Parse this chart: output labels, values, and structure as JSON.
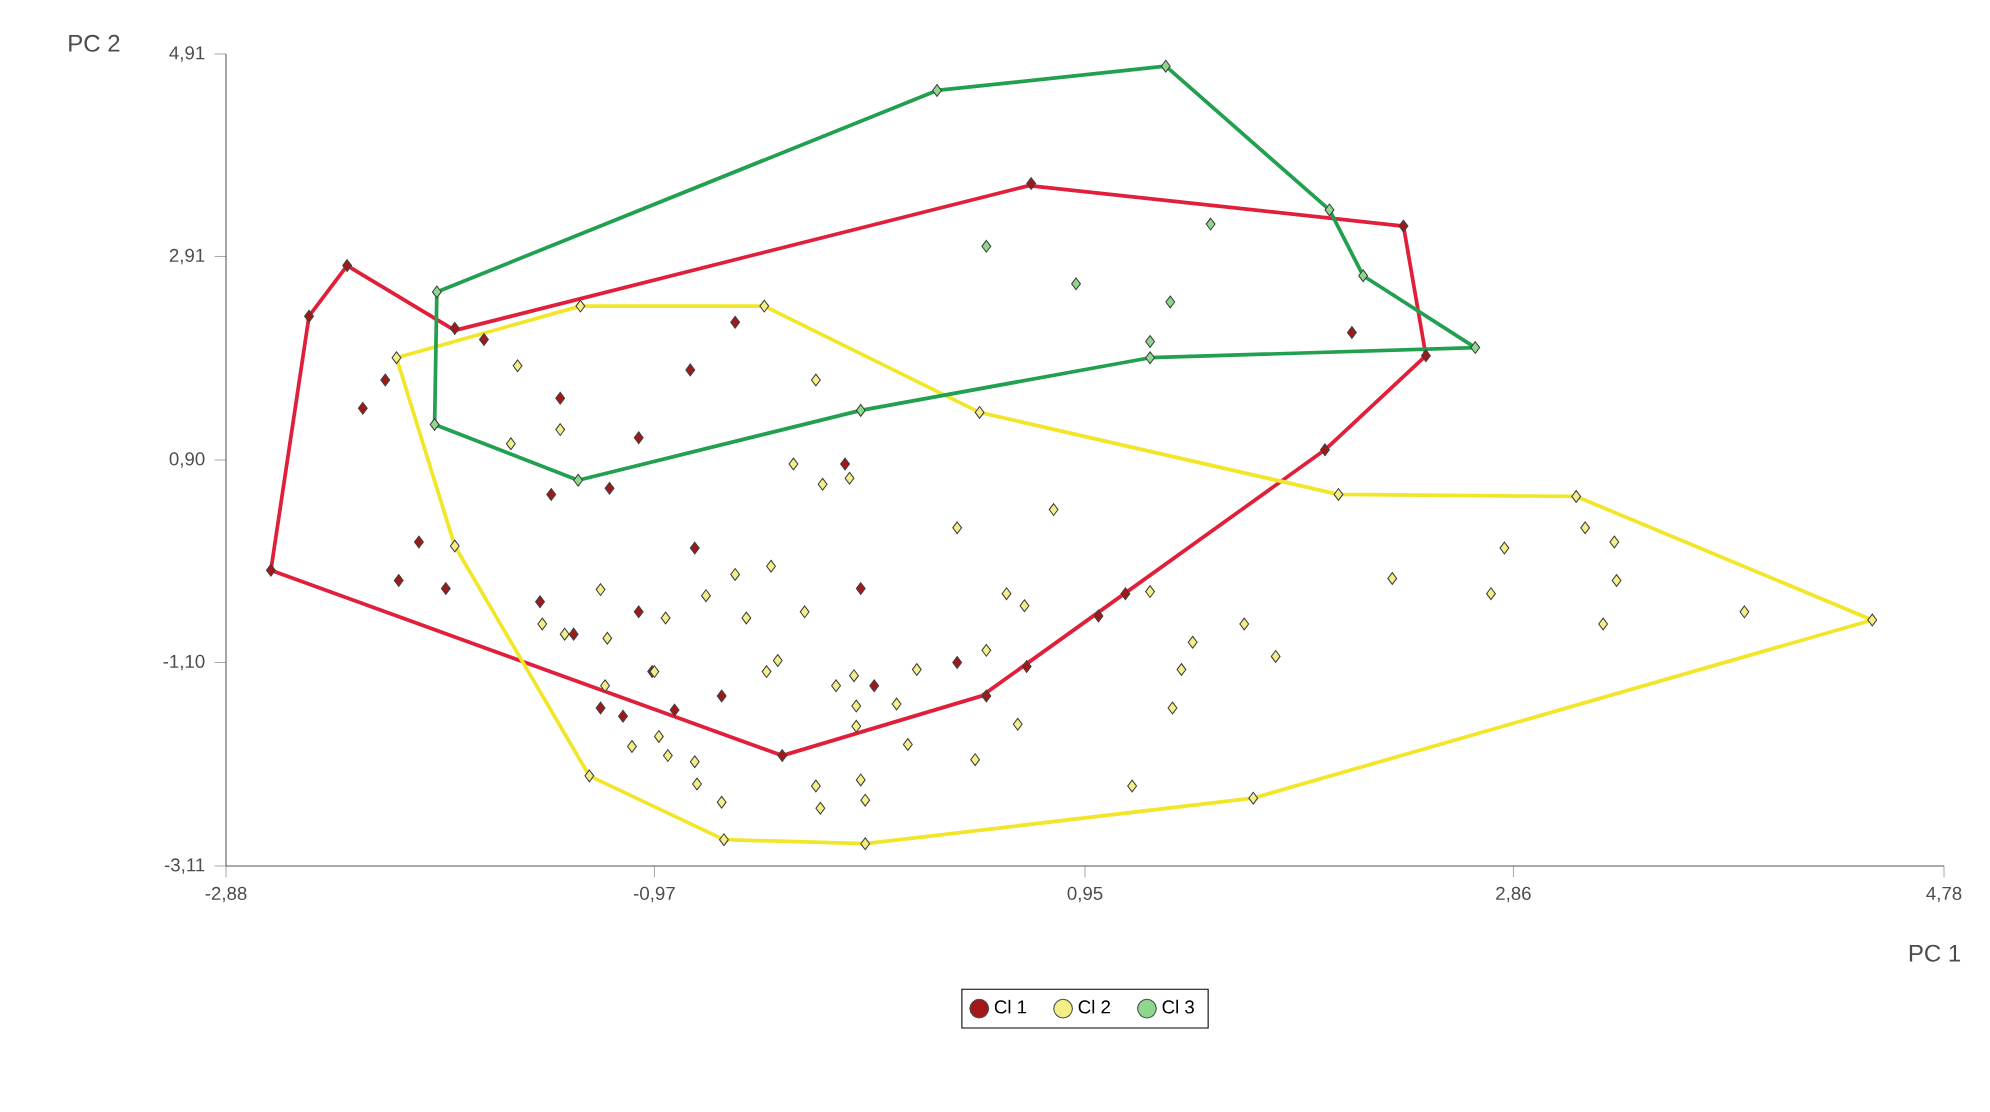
{
  "chart_data": {
    "type": "scatter",
    "xlabel": "PC 1",
    "ylabel": "PC 2",
    "xlim": [
      -2.88,
      4.78
    ],
    "ylim": [
      -3.11,
      4.91
    ],
    "xticks": [
      {
        "value": -2.88,
        "label": "-2,88"
      },
      {
        "value": -0.97,
        "label": "-0,97"
      },
      {
        "value": 0.95,
        "label": "0,95"
      },
      {
        "value": 2.86,
        "label": "2,86"
      },
      {
        "value": 4.78,
        "label": "4,78"
      }
    ],
    "yticks": [
      {
        "value": -3.11,
        "label": "-3,11"
      },
      {
        "value": -1.1,
        "label": "-1,10"
      },
      {
        "value": 0.9,
        "label": "0,90"
      },
      {
        "value": 2.91,
        "label": "2,91"
      },
      {
        "value": 4.91,
        "label": "4,91"
      }
    ],
    "marker": "diamond",
    "legend": "bottom",
    "grid": false,
    "series": [
      {
        "type": "line",
        "marker": "none",
        "color": "#e0203a",
        "x": [
          -2.68,
          -2.51,
          -2.34,
          -1.86,
          0.7,
          2.37,
          2.47
        ],
        "values": [
          -0.19,
          2.32,
          2.82,
          2.18,
          3.61,
          3.21,
          1.93
        ]
      },
      {
        "type": "line",
        "marker": "none",
        "color": "#e0203a",
        "x": [
          -2.68,
          -0.4,
          0.49,
          1.0,
          2.02,
          2.47
        ],
        "values": [
          -0.19,
          -2.02,
          -1.43,
          -0.62,
          1.0,
          1.93
        ]
      },
      {
        "type": "line",
        "marker": "none",
        "color": "#f2e62a",
        "x": [
          -2.12,
          -1.3,
          -0.48,
          0.48,
          2.08,
          3.14,
          4.46
        ],
        "values": [
          1.91,
          2.42,
          2.42,
          1.37,
          0.56,
          0.54,
          -0.68
        ]
      },
      {
        "type": "line",
        "marker": "none",
        "color": "#f2e62a",
        "x": [
          -2.12,
          -1.86,
          -1.26,
          -0.66,
          -0.03,
          1.7,
          4.46
        ],
        "values": [
          1.91,
          0.05,
          -2.22,
          -2.85,
          -2.89,
          -2.44,
          -0.68
        ]
      },
      {
        "type": "line",
        "marker": "none",
        "color": "#22a050",
        "x": [
          -1.95,
          -1.94,
          0.29,
          1.31,
          2.04,
          2.19,
          2.69
        ],
        "values": [
          1.25,
          2.56,
          4.55,
          4.79,
          3.37,
          2.72,
          2.01
        ]
      },
      {
        "type": "line",
        "marker": "none",
        "color": "#22a050",
        "x": [
          -1.95,
          -1.31,
          -0.05,
          1.24,
          2.69
        ],
        "values": [
          1.25,
          0.7,
          1.39,
          1.91,
          2.01
        ]
      },
      {
        "name": "Cl 1",
        "type": "scatter",
        "color": "#a01818",
        "x": [
          -2.68,
          -2.51,
          -2.34,
          -1.86,
          -1.73,
          -2.17,
          -2.27,
          -1.39,
          -0.81,
          -0.61,
          -1.04,
          2.14,
          0.71,
          2.37,
          2.47,
          -1.43,
          -1.17,
          -2.02,
          -2.11,
          -1.9,
          -1.48,
          -1.33,
          -1.04,
          -0.79,
          -0.98,
          -0.67,
          -0.88,
          -1.21,
          -1.11,
          -0.12,
          -0.05,
          0.01,
          0.38,
          2.02,
          1.13,
          1.01,
          0.69,
          0.51,
          -0.4
        ],
        "values": [
          -0.19,
          2.32,
          2.82,
          2.2,
          2.09,
          1.69,
          1.41,
          1.51,
          1.79,
          2.26,
          1.12,
          2.16,
          3.63,
          3.21,
          1.93,
          0.56,
          0.62,
          0.09,
          -0.29,
          -0.37,
          -0.5,
          -0.82,
          -0.6,
          0.03,
          -1.19,
          -1.43,
          -1.57,
          -1.55,
          -1.63,
          0.86,
          -0.37,
          -1.33,
          -1.1,
          1.0,
          -0.42,
          -0.64,
          -1.14,
          -1.43,
          -2.02
        ]
      },
      {
        "name": "Cl 2",
        "type": "scatter",
        "color": "#f4ee88",
        "x": [
          -2.12,
          -1.3,
          -0.48,
          0.48,
          2.08,
          3.14,
          4.46,
          1.7,
          -0.03,
          -0.66,
          -1.26,
          -1.86,
          -1.58,
          -0.25,
          -1.39,
          -1.61,
          -0.35,
          -0.22,
          -0.1,
          -1.21,
          -1.47,
          -1.37,
          -1.18,
          -0.92,
          -0.74,
          -0.61,
          -0.45,
          -0.56,
          -0.3,
          -1.19,
          -0.97,
          -0.47,
          -0.42,
          -0.16,
          -0.08,
          -0.07,
          -0.07,
          -1.07,
          -0.95,
          -0.91,
          -0.79,
          -0.78,
          -0.67,
          -0.25,
          -0.23,
          -0.05,
          -0.03,
          0.38,
          0.81,
          0.6,
          0.68,
          1.24,
          1.66,
          1.43,
          1.38,
          1.8,
          1.34,
          0.51,
          0.2,
          0.11,
          0.65,
          0.16,
          0.46,
          1.16,
          2.32,
          2.82,
          2.76,
          3.18,
          3.31,
          3.32,
          3.26,
          3.89
        ],
        "values": [
          1.91,
          2.42,
          2.42,
          1.37,
          0.56,
          0.54,
          -0.68,
          -2.44,
          -2.89,
          -2.85,
          -2.22,
          0.05,
          1.83,
          1.69,
          1.2,
          1.06,
          0.86,
          0.66,
          0.72,
          -0.38,
          -0.72,
          -0.82,
          -0.86,
          -0.66,
          -0.44,
          -0.23,
          -0.15,
          -0.66,
          -0.6,
          -1.33,
          -1.19,
          -1.19,
          -1.08,
          -1.33,
          -1.23,
          -1.53,
          -1.73,
          -1.93,
          -1.83,
          -2.02,
          -2.08,
          -2.3,
          -2.48,
          -2.32,
          -2.54,
          -2.26,
          -2.46,
          0.23,
          0.41,
          -0.42,
          -0.54,
          -0.4,
          -0.72,
          -0.9,
          -1.17,
          -1.04,
          -1.55,
          -0.98,
          -1.17,
          -1.51,
          -1.71,
          -1.91,
          -2.06,
          -2.32,
          -0.27,
          0.03,
          -0.42,
          0.23,
          0.09,
          -0.29,
          -0.72,
          -0.6
        ]
      },
      {
        "name": "Cl 3",
        "type": "scatter",
        "color": "#8ed88e",
        "x": [
          -1.94,
          0.29,
          1.31,
          2.04,
          2.19,
          2.69,
          1.24,
          -0.05,
          -1.31,
          -1.95,
          0.51,
          0.91,
          1.33,
          1.51,
          1.24
        ],
        "values": [
          2.56,
          4.55,
          4.79,
          3.37,
          2.72,
          2.01,
          1.91,
          1.39,
          0.7,
          1.25,
          3.01,
          2.64,
          2.46,
          3.23,
          2.07
        ]
      }
    ]
  }
}
